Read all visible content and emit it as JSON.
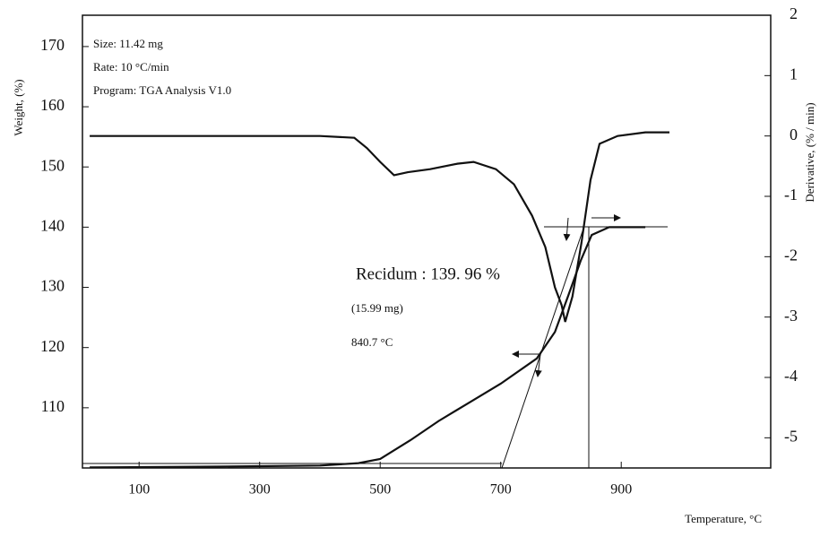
{
  "chart_data": {
    "type": "line",
    "annotations": [
      "Size: 11.42 mg",
      "Rate: 10 °C/min",
      "Program: TGA Analysis V1.0",
      "Recidum : 139. 96 %",
      "(15.99 mg)",
      "840.7 °C"
    ],
    "xlabel": "Temperature, °C",
    "ylabel": "Weight, (%)",
    "y2label": "Derivative, (% / min)",
    "xlim": [
      6,
      1148
    ],
    "xticks": [
      100,
      300,
      500,
      700,
      900
    ],
    "ylim": [
      100,
      175.2
    ],
    "yticks": [
      110,
      120,
      130,
      140,
      150,
      160,
      170
    ],
    "y2lim": [
      -5.5,
      2
    ],
    "y2ticks": [
      -5,
      -4,
      -3,
      -2,
      -1,
      0,
      1,
      2
    ],
    "series": [
      {
        "color": "#111111",
        "axis": "y",
        "x": [
          18,
          200,
          400,
          464,
          500,
          550,
          597,
          650,
          700,
          760,
          790,
          812,
          833,
          851,
          880,
          940
        ],
        "values": [
          100.1,
          100.2,
          100.4,
          100.8,
          101.5,
          104.6,
          107.8,
          111,
          114,
          118.2,
          122.6,
          128.6,
          134.5,
          138.7,
          140,
          140
        ]
      },
      {
        "color": "#111111",
        "axis": "y2",
        "x": [
          18,
          200,
          400,
          457,
          478,
          500,
          523,
          546,
          583,
          628,
          655,
          692,
          722,
          752,
          774,
          790,
          801,
          807,
          819,
          834,
          849,
          864,
          894,
          940,
          980
        ],
        "values": [
          0,
          0,
          0,
          -0.03,
          -0.2,
          -0.43,
          -0.65,
          -0.6,
          -0.55,
          -0.46,
          -0.43,
          -0.55,
          -0.8,
          -1.32,
          -1.84,
          -2.51,
          -2.8,
          -3.08,
          -2.66,
          -1.77,
          -0.73,
          -0.13,
          0,
          0.06,
          0.06
        ]
      }
    ]
  }
}
